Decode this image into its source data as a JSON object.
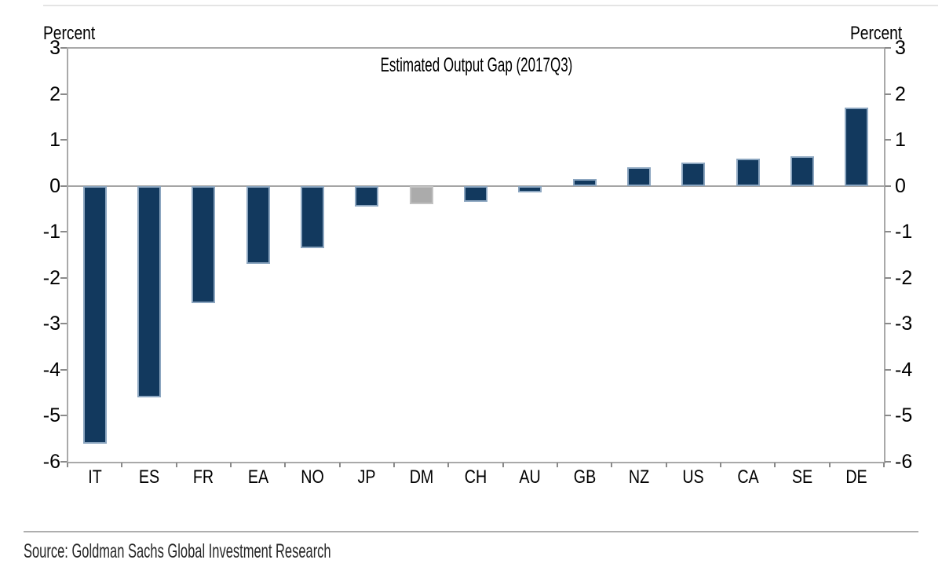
{
  "chart_data": {
    "type": "bar",
    "title": "Estimated Output Gap (2017Q3)",
    "ylabel_left": "Percent",
    "ylabel_right": "Percent",
    "categories": [
      "IT",
      "ES",
      "FR",
      "EA",
      "NO",
      "JP",
      "DM",
      "CH",
      "AU",
      "GB",
      "NZ",
      "US",
      "CA",
      "SE",
      "DE"
    ],
    "values": [
      -5.6,
      -4.6,
      -2.55,
      -1.7,
      -1.35,
      -0.45,
      -0.4,
      -0.35,
      -0.15,
      0.15,
      0.4,
      0.5,
      0.6,
      0.65,
      1.7
    ],
    "highlighted_category": "DM",
    "ylim": [
      -6,
      3
    ],
    "yticks": [
      3,
      2,
      1,
      0,
      -1,
      -2,
      -3,
      -4,
      -5,
      -6
    ],
    "grid": false,
    "legend_position": "none",
    "colors": {
      "bar": "#12395E",
      "bar_border": "#8CA6C0",
      "highlight_bar": "#ABABAB",
      "highlight_border": "#C2C2C2",
      "axis_line": "#A9A9A9",
      "zero_line": "#A5A5A5",
      "tick": "#8A8A8A"
    }
  },
  "footer": {
    "source": "Source: Goldman Sachs Global Investment Research"
  }
}
